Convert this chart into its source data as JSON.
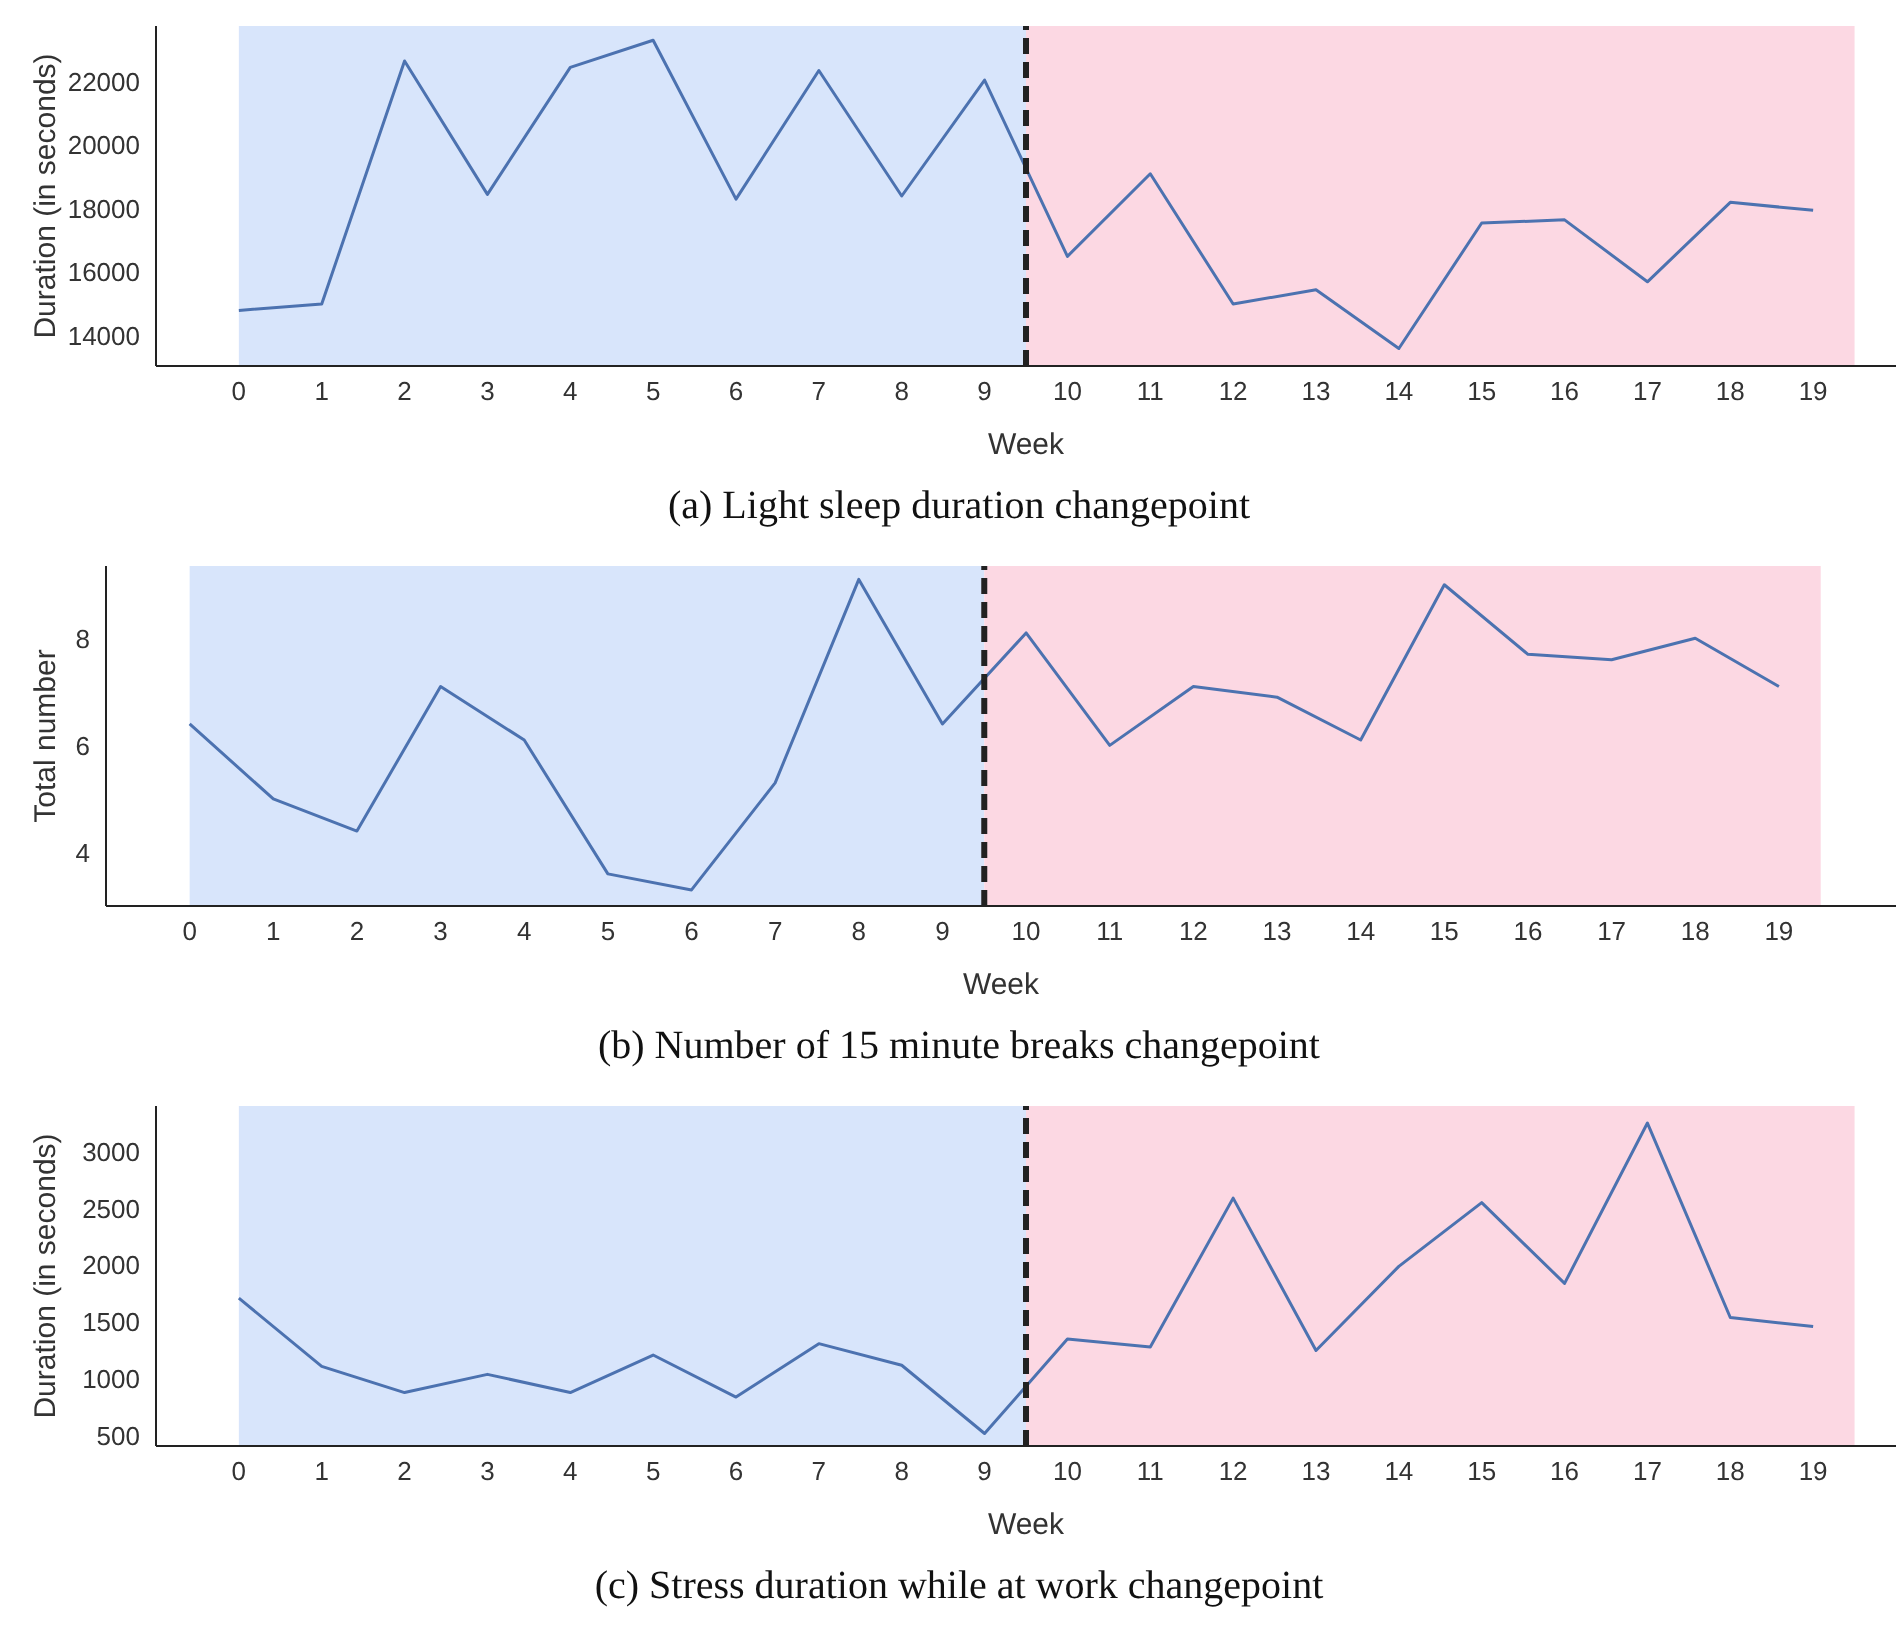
{
  "chart_data": [
    {
      "type": "line",
      "title": "(a) Light sleep duration changepoint",
      "xlabel": "Week",
      "ylabel": "Duration (in seconds)",
      "x": [
        0,
        1,
        2,
        3,
        4,
        5,
        6,
        7,
        8,
        9,
        10,
        11,
        12,
        13,
        14,
        15,
        16,
        17,
        18,
        19
      ],
      "xlim": [
        -1,
        20
      ],
      "xticks": [
        0,
        1,
        2,
        3,
        4,
        5,
        6,
        7,
        8,
        9,
        10,
        11,
        12,
        13,
        14,
        15,
        16,
        17,
        18,
        19
      ],
      "ylim": [
        13050,
        23750
      ],
      "yticks": [
        14000,
        16000,
        18000,
        20000,
        22000
      ],
      "series": [
        {
          "color": "#4c72b0",
          "values": [
            14800,
            15000,
            22650,
            18450,
            22450,
            23300,
            18300,
            22350,
            18400,
            22050,
            16500,
            19100,
            15000,
            15450,
            13600,
            17550,
            17650,
            15700,
            18200,
            17950
          ]
        }
      ],
      "bands": [
        {
          "axis": "x",
          "from": 0,
          "to": 9.5,
          "color": "#d8e5fb"
        },
        {
          "axis": "x",
          "from": 9.5,
          "to": 19.5,
          "color": "#fcd8e3"
        }
      ],
      "ref_lines": [
        {
          "axis": "x",
          "value": 9.5,
          "color": "#222222",
          "line_style": "dashed"
        }
      ]
    },
    {
      "type": "line",
      "title": "(b) Number of 15 minute breaks changepoint",
      "xlabel": "Week",
      "ylabel": "Total number",
      "x": [
        0,
        1,
        2,
        3,
        4,
        5,
        6,
        7,
        8,
        9,
        10,
        11,
        12,
        13,
        14,
        15,
        16,
        17,
        18,
        19
      ],
      "xlim": [
        -1,
        20.4
      ],
      "xticks": [
        0,
        1,
        2,
        3,
        4,
        5,
        6,
        7,
        8,
        9,
        10,
        11,
        12,
        13,
        14,
        15,
        16,
        17,
        18,
        19
      ],
      "ylim": [
        3,
        9.35
      ],
      "yticks": [
        4,
        6,
        8
      ],
      "series": [
        {
          "color": "#4c72b0",
          "values": [
            6.4,
            5.0,
            4.4,
            7.1,
            6.1,
            3.6,
            3.3,
            5.3,
            9.1,
            6.4,
            8.1,
            6.0,
            7.1,
            6.9,
            6.1,
            9.0,
            7.7,
            7.6,
            8.0,
            7.1
          ]
        }
      ],
      "bands": [
        {
          "axis": "x",
          "from": 0,
          "to": 9.5,
          "color": "#d8e5fb"
        },
        {
          "axis": "x",
          "from": 9.5,
          "to": 19.5,
          "color": "#fcd8e3"
        }
      ],
      "ref_lines": [
        {
          "axis": "x",
          "value": 9.5,
          "color": "#222222",
          "line_style": "dashed"
        }
      ]
    },
    {
      "type": "line",
      "title": "(c) Stress duration while at work changepoint",
      "xlabel": "Week",
      "ylabel": "Duration (in seconds)",
      "x": [
        0,
        1,
        2,
        3,
        4,
        5,
        6,
        7,
        8,
        9,
        10,
        11,
        12,
        13,
        14,
        15,
        16,
        17,
        18,
        19
      ],
      "xlim": [
        -1,
        20
      ],
      "xticks": [
        0,
        1,
        2,
        3,
        4,
        5,
        6,
        7,
        8,
        9,
        10,
        11,
        12,
        13,
        14,
        15,
        16,
        17,
        18,
        19
      ],
      "ylim": [
        410,
        3400
      ],
      "yticks": [
        500,
        1000,
        1500,
        2000,
        2500,
        3000
      ],
      "series": [
        {
          "color": "#4c72b0",
          "values": [
            1710,
            1110,
            880,
            1040,
            880,
            1210,
            840,
            1310,
            1120,
            520,
            1350,
            1280,
            2590,
            1250,
            1990,
            2550,
            1840,
            3250,
            1540,
            1460
          ]
        }
      ],
      "bands": [
        {
          "axis": "x",
          "from": 0,
          "to": 9.5,
          "color": "#d8e5fb"
        },
        {
          "axis": "x",
          "from": 9.5,
          "to": 19.5,
          "color": "#fcd8e3"
        }
      ],
      "ref_lines": [
        {
          "axis": "x",
          "value": 9.5,
          "color": "#222222",
          "line_style": "dashed"
        }
      ]
    }
  ]
}
